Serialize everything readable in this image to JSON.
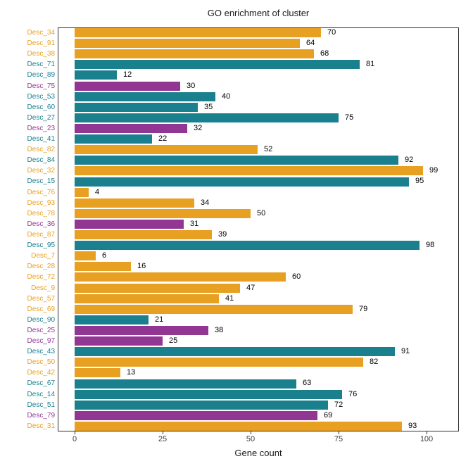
{
  "chart_data": {
    "type": "bar",
    "orientation": "horizontal",
    "title": "GO enrichment of cluster",
    "xlabel": "Gene count",
    "ylabel": "",
    "xlim": [
      0,
      100
    ],
    "xticks": [
      0,
      25,
      50,
      75,
      100
    ],
    "grid": false,
    "legend": "none",
    "palette": {
      "orange": "#E8A023",
      "teal": "#1A808E",
      "purple": "#923694"
    },
    "bars": [
      {
        "label": "Desc_34",
        "value": 70,
        "color": "orange"
      },
      {
        "label": "Desc_91",
        "value": 64,
        "color": "orange"
      },
      {
        "label": "Desc_38",
        "value": 68,
        "color": "orange"
      },
      {
        "label": "Desc_71",
        "value": 81,
        "color": "teal"
      },
      {
        "label": "Desc_89",
        "value": 12,
        "color": "teal"
      },
      {
        "label": "Desc_75",
        "value": 30,
        "color": "purple"
      },
      {
        "label": "Desc_53",
        "value": 40,
        "color": "teal"
      },
      {
        "label": "Desc_60",
        "value": 35,
        "color": "teal"
      },
      {
        "label": "Desc_27",
        "value": 75,
        "color": "teal"
      },
      {
        "label": "Desc_23",
        "value": 32,
        "color": "purple"
      },
      {
        "label": "Desc_41",
        "value": 22,
        "color": "teal"
      },
      {
        "label": "Desc_82",
        "value": 52,
        "color": "orange"
      },
      {
        "label": "Desc_84",
        "value": 92,
        "color": "teal"
      },
      {
        "label": "Desc_32",
        "value": 99,
        "color": "orange"
      },
      {
        "label": "Desc_15",
        "value": 95,
        "color": "teal"
      },
      {
        "label": "Desc_76",
        "value": 4,
        "color": "orange"
      },
      {
        "label": "Desc_93",
        "value": 34,
        "color": "orange"
      },
      {
        "label": "Desc_78",
        "value": 50,
        "color": "orange"
      },
      {
        "label": "Desc_36",
        "value": 31,
        "color": "purple"
      },
      {
        "label": "Desc_87",
        "value": 39,
        "color": "orange"
      },
      {
        "label": "Desc_95",
        "value": 98,
        "color": "teal"
      },
      {
        "label": "Desc_7",
        "value": 6,
        "color": "orange"
      },
      {
        "label": "Desc_28",
        "value": 16,
        "color": "orange"
      },
      {
        "label": "Desc_72",
        "value": 60,
        "color": "orange"
      },
      {
        "label": "Desc_9",
        "value": 47,
        "color": "orange"
      },
      {
        "label": "Desc_57",
        "value": 41,
        "color": "orange"
      },
      {
        "label": "Desc_69",
        "value": 79,
        "color": "orange"
      },
      {
        "label": "Desc_90",
        "value": 21,
        "color": "teal"
      },
      {
        "label": "Desc_25",
        "value": 38,
        "color": "purple"
      },
      {
        "label": "Desc_97",
        "value": 25,
        "color": "purple"
      },
      {
        "label": "Desc_43",
        "value": 91,
        "color": "teal"
      },
      {
        "label": "Desc_50",
        "value": 82,
        "color": "orange"
      },
      {
        "label": "Desc_42",
        "value": 13,
        "color": "orange"
      },
      {
        "label": "Desc_67",
        "value": 63,
        "color": "teal"
      },
      {
        "label": "Desc_14",
        "value": 76,
        "color": "teal"
      },
      {
        "label": "Desc_51",
        "value": 72,
        "color": "teal"
      },
      {
        "label": "Desc_79",
        "value": 69,
        "color": "purple"
      },
      {
        "label": "Desc_31",
        "value": 93,
        "color": "orange"
      }
    ]
  }
}
